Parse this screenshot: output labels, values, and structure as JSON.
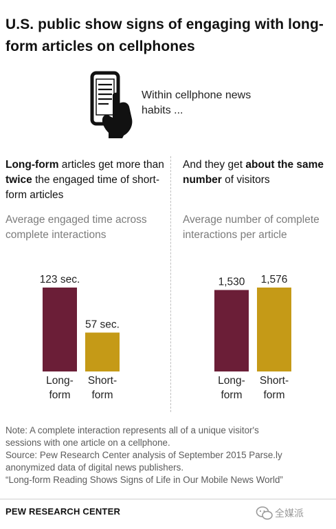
{
  "title": "U.S. public show signs of engaging with long-form articles on cellphones",
  "intro": "Within cellphone news habits ...",
  "left_panel": {
    "subhead_parts": [
      "Long-form",
      " articles get more than ",
      "twice",
      " the engaged time of short-form articles"
    ],
    "metric_label": "Average engaged time across complete interactions"
  },
  "right_panel": {
    "subhead_parts": [
      "And they get ",
      "about the same number",
      " of visitors"
    ],
    "metric_label": "Average number of complete interactions per article"
  },
  "chart_data": [
    {
      "type": "bar",
      "title": "Average engaged time across complete interactions",
      "categories": [
        "Long-form",
        "Short-form"
      ],
      "category_lines": [
        [
          "Long-",
          "form"
        ],
        [
          "Short-",
          "form"
        ]
      ],
      "values": [
        123,
        57
      ],
      "value_labels": [
        "123 sec.",
        "57 sec."
      ],
      "colors": [
        "#6b1e37",
        "#c59a17"
      ],
      "ylim": [
        0,
        123
      ]
    },
    {
      "type": "bar",
      "title": "Average number of complete interactions per article",
      "categories": [
        "Long-form",
        "Short-form"
      ],
      "category_lines": [
        [
          "Long-",
          "form"
        ],
        [
          "Short-",
          "form"
        ]
      ],
      "values": [
        1530,
        1576
      ],
      "value_labels": [
        "1,530",
        "1,576"
      ],
      "colors": [
        "#6b1e37",
        "#c59a17"
      ],
      "ylim": [
        0,
        1576
      ]
    }
  ],
  "notes": {
    "lines": [
      "Note: A complete interaction represents all of a unique visitor's",
      "sessions with one article on a cellphone.",
      "Source: Pew Research Center analysis of September 2015 Parse.ly",
      "anonymized data of digital news publishers.",
      "“Long-form Reading Shows Signs of Life in Our Mobile News World”"
    ]
  },
  "footer": {
    "org": "PEW RESEARCH CENTER",
    "watermark": "全媒派"
  },
  "icons": {
    "phone": "phone-with-hand-icon",
    "watermark": "wechat-icon"
  }
}
